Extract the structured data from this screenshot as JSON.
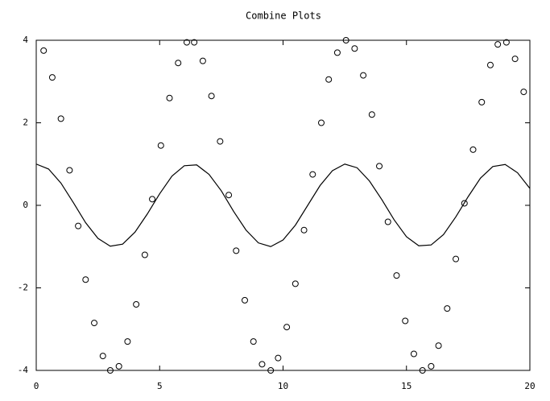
{
  "chart_data": {
    "type": "combo",
    "title": "Combine Plots",
    "xlim": [
      0,
      20
    ],
    "xticks": [
      0,
      5,
      10,
      15,
      20
    ],
    "ylim": [
      -4,
      4
    ],
    "yticks": [
      -4,
      -2,
      0,
      2,
      4
    ],
    "series": [
      {
        "type": "line",
        "color": "#000000",
        "x": [
          0,
          0.5,
          1,
          1.5,
          2,
          2.5,
          3,
          3.5,
          4,
          4.5,
          5,
          5.5,
          6,
          6.5,
          7,
          7.5,
          8,
          8.5,
          9,
          9.5,
          10,
          10.5,
          11,
          11.5,
          12,
          12.5,
          13,
          13.5,
          14,
          14.5,
          15,
          15.5,
          16,
          16.5,
          17,
          17.5,
          18,
          18.5,
          19,
          19.5,
          20
        ],
        "values": [
          1,
          0.88,
          0.54,
          0.07,
          -0.42,
          -0.8,
          -0.99,
          -0.94,
          -0.65,
          -0.21,
          0.28,
          0.71,
          0.96,
          0.98,
          0.75,
          0.35,
          -0.15,
          -0.6,
          -0.91,
          -1,
          -0.84,
          -0.48,
          0,
          0.48,
          0.84,
          1,
          0.91,
          0.59,
          0.14,
          -0.35,
          -0.76,
          -0.98,
          -0.96,
          -0.71,
          -0.28,
          0.21,
          0.66,
          0.94,
          0.99,
          0.79,
          0.41
        ]
      },
      {
        "type": "scatter",
        "color": "#000000",
        "x": [
          0.3,
          0.65,
          1,
          1.35,
          1.7,
          2,
          2.35,
          2.7,
          3,
          3.35,
          3.7,
          4.05,
          4.4,
          4.7,
          5.05,
          5.4,
          5.75,
          6.1,
          6.4,
          6.75,
          7.1,
          7.45,
          7.8,
          8.1,
          8.45,
          8.8,
          9.15,
          9.5,
          9.8,
          10.15,
          10.5,
          10.85,
          11.2,
          11.55,
          11.85,
          12.2,
          12.55,
          12.9,
          13.25,
          13.6,
          13.9,
          14.25,
          14.6,
          14.95,
          15.3,
          15.65,
          16,
          16.3,
          16.65,
          17,
          17.35,
          17.7,
          18.05,
          18.4,
          18.7,
          19.05,
          19.4,
          19.75
        ],
        "values": [
          3.75,
          3.1,
          2.1,
          0.85,
          -0.5,
          -1.8,
          -2.85,
          -3.65,
          -4,
          -3.9,
          -3.3,
          -2.4,
          -1.2,
          0.15,
          1.45,
          2.6,
          3.45,
          3.95,
          3.95,
          3.5,
          2.65,
          1.55,
          0.25,
          -1.1,
          -2.3,
          -3.3,
          -3.85,
          -4,
          -3.7,
          -2.95,
          -1.9,
          -0.6,
          0.75,
          2,
          3.05,
          3.7,
          4,
          3.8,
          3.15,
          2.2,
          0.95,
          -0.4,
          -1.7,
          -2.8,
          -3.6,
          -4,
          -3.9,
          -3.4,
          -2.5,
          -1.3,
          0.05,
          1.35,
          2.5,
          3.4,
          3.9,
          3.95,
          3.55,
          2.75
        ]
      }
    ]
  }
}
